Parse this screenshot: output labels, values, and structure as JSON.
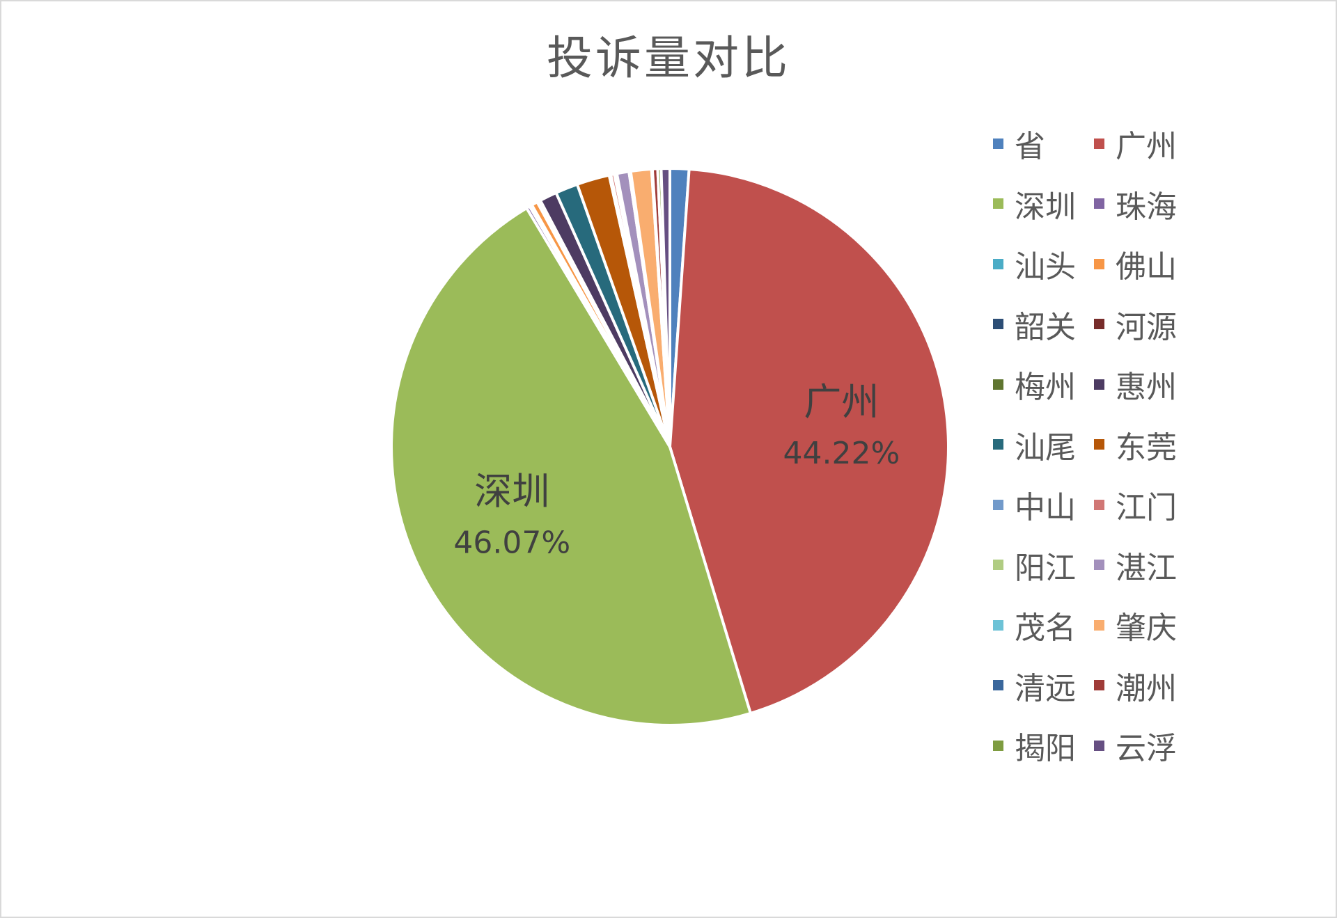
{
  "chart_data": {
    "type": "pie",
    "title": "投诉量对比",
    "categories": [
      "省",
      "广州",
      "深圳",
      "珠海",
      "汕头",
      "佛山",
      "韶关",
      "河源",
      "梅州",
      "惠州",
      "汕尾",
      "东莞",
      "中山",
      "江门",
      "阳江",
      "湛江",
      "茂名",
      "肇庆",
      "清远",
      "潮州",
      "揭阳",
      "云浮"
    ],
    "values": [
      1.1,
      44.22,
      46.07,
      0.2,
      0.15,
      0.35,
      0.1,
      0.05,
      0.05,
      1.0,
      1.3,
      1.9,
      0.1,
      0.2,
      0.15,
      0.7,
      0.1,
      1.2,
      0.05,
      0.3,
      0.2,
      0.5
    ],
    "colors": [
      "#4f81bd",
      "#c0504d",
      "#9bbb59",
      "#8064a2",
      "#4bacc6",
      "#f79646",
      "#2c4d75",
      "#772c2a",
      "#5f7530",
      "#4d3b62",
      "#276a7c",
      "#b65708",
      "#729aca",
      "#d17775",
      "#b0cc82",
      "#a390bc",
      "#6dc2d6",
      "#f9ad6f",
      "#3a679c",
      "#9f3b38",
      "#7e9c40",
      "#664f82"
    ],
    "slice_labels": [
      {
        "category": "广州",
        "text": "广州",
        "value_text": "44.22%"
      },
      {
        "category": "深圳",
        "text": "深圳",
        "value_text": "46.07%"
      }
    ],
    "legend_position": "right"
  }
}
